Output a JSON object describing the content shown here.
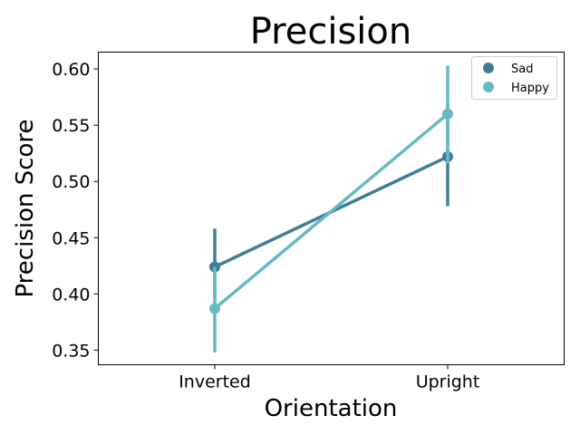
{
  "chart_data": {
    "type": "line",
    "title": "Precision",
    "xlabel": "Orientation",
    "ylabel": "Precision Score",
    "categories": [
      "Inverted",
      "Upright"
    ],
    "ylim": [
      0.337,
      0.615
    ],
    "yticks": [
      "0.35",
      "0.40",
      "0.45",
      "0.50",
      "0.55",
      "0.60"
    ],
    "grid": false,
    "legend_position": "top-right",
    "series": [
      {
        "name": "Sad",
        "color": "#3f7f93",
        "values": [
          0.424,
          0.522
        ],
        "ci_low": [
          0.397,
          0.478
        ],
        "ci_high": [
          0.458,
          0.565
        ]
      },
      {
        "name": "Happy",
        "color": "#67b8c5",
        "values": [
          0.387,
          0.56
        ],
        "ci_low": [
          0.348,
          0.516
        ],
        "ci_high": [
          0.424,
          0.603
        ]
      }
    ]
  }
}
